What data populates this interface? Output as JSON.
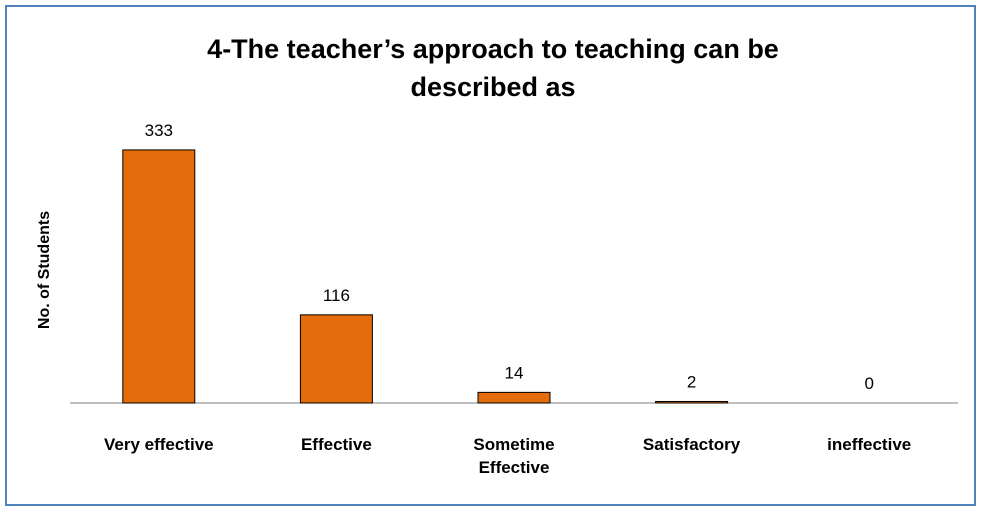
{
  "chart_data": {
    "type": "bar",
    "title": "4-The teacher’s approach to teaching can be described as",
    "ylabel": "No. of Students",
    "categories": [
      "Very effective",
      "Effective",
      "Sometime Effective",
      "Satisfactory",
      "ineffective"
    ],
    "values": [
      333,
      116,
      14,
      2,
      0
    ],
    "color": "#e46c0a",
    "ylim": [
      0,
      400
    ]
  }
}
